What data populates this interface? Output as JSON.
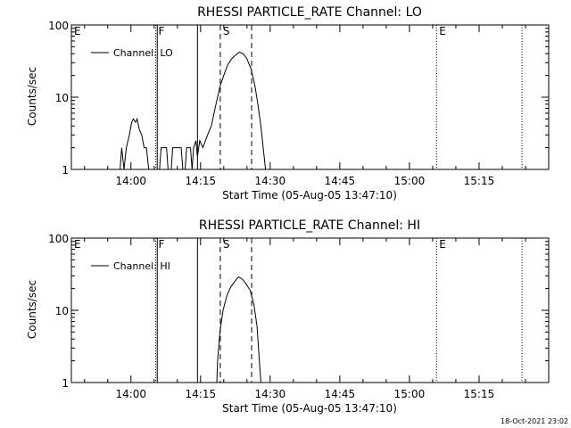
{
  "footer_stamp": "18-Oct-2021 23:02",
  "chart_data": [
    {
      "type": "line",
      "title": "RHESSI PARTICLE_RATE Channel: LO",
      "xlabel": "Start Time (05-Aug-05 13:47:10)",
      "ylabel": "Counts/sec",
      "yscale": "log",
      "ylim": [
        1,
        100
      ],
      "xlim": [
        "13:47:10",
        "15:30:00"
      ],
      "grid": false,
      "legend_position": "top-left",
      "x_ticks": [
        "14:00",
        "14:15",
        "14:30",
        "14:45",
        "15:00",
        "15:15"
      ],
      "y_ticks": [
        "1",
        "10",
        "100"
      ],
      "markers": [
        {
          "time": "13:47:10",
          "label": "E",
          "style": "none"
        },
        {
          "time": "14:05:20",
          "label": "F",
          "style": "dotted"
        },
        {
          "time": "14:05:40",
          "label": "",
          "style": "solid"
        },
        {
          "time": "14:14:20",
          "label": "",
          "style": "solid"
        },
        {
          "time": "14:19:15",
          "label": "S",
          "style": "dashed"
        },
        {
          "time": "14:26:00",
          "label": "",
          "style": "dashed"
        },
        {
          "time": "15:05:50",
          "label": "E",
          "style": "dotted"
        },
        {
          "time": "15:24:15",
          "label": "",
          "style": "dotted"
        }
      ],
      "series": [
        {
          "name": "Channel: LO",
          "points": [
            [
              "13:57:40",
              1
            ],
            [
              "13:58:00",
              2
            ],
            [
              "13:58:30",
              1
            ],
            [
              "13:59:00",
              2
            ],
            [
              "13:59:40",
              3
            ],
            [
              "14:00:10",
              4.5
            ],
            [
              "14:00:30",
              5
            ],
            [
              "14:01:00",
              4.5
            ],
            [
              "14:01:20",
              5
            ],
            [
              "14:01:50",
              3.5
            ],
            [
              "14:02:20",
              3
            ],
            [
              "14:02:50",
              2
            ],
            [
              "14:03:20",
              2
            ],
            [
              "14:03:50",
              1
            ],
            [
              "14:06:10",
              1
            ],
            [
              "14:06:30",
              2
            ],
            [
              "14:07:40",
              2
            ],
            [
              "14:08:00",
              1
            ],
            [
              "14:08:40",
              1
            ],
            [
              "14:09:00",
              2
            ],
            [
              "14:10:50",
              2
            ],
            [
              "14:11:10",
              1
            ],
            [
              "14:11:40",
              1
            ],
            [
              "14:12:00",
              2
            ],
            [
              "14:12:50",
              2
            ],
            [
              "14:13:10",
              1
            ],
            [
              "14:13:30",
              2
            ],
            [
              "14:14:00",
              2.5
            ],
            [
              "14:14:20",
              1.5
            ],
            [
              "14:14:50",
              2.5
            ],
            [
              "14:15:30",
              2
            ],
            [
              "14:16:30",
              3
            ],
            [
              "14:17:20",
              4
            ],
            [
              "14:18:20",
              8
            ],
            [
              "14:19:10",
              14
            ],
            [
              "14:20:00",
              20
            ],
            [
              "14:20:50",
              28
            ],
            [
              "14:21:40",
              34
            ],
            [
              "14:22:30",
              38
            ],
            [
              "14:23:20",
              42
            ],
            [
              "14:24:10",
              40
            ],
            [
              "14:25:00",
              34
            ],
            [
              "14:25:50",
              25
            ],
            [
              "14:26:40",
              15
            ],
            [
              "14:27:20",
              8
            ],
            [
              "14:28:00",
              4
            ],
            [
              "14:28:30",
              2
            ],
            [
              "14:29:00",
              1
            ]
          ]
        }
      ]
    },
    {
      "type": "line",
      "title": "RHESSI PARTICLE_RATE Channel: HI",
      "xlabel": "Start Time (05-Aug-05 13:47:10)",
      "ylabel": "Counts/sec",
      "yscale": "log",
      "ylim": [
        1,
        100
      ],
      "xlim": [
        "13:47:10",
        "15:30:00"
      ],
      "grid": false,
      "legend_position": "top-left",
      "x_ticks": [
        "14:00",
        "14:15",
        "14:30",
        "14:45",
        "15:00",
        "15:15"
      ],
      "y_ticks": [
        "1",
        "10",
        "100"
      ],
      "markers": [
        {
          "time": "13:47:10",
          "label": "E",
          "style": "none"
        },
        {
          "time": "14:05:20",
          "label": "F",
          "style": "dotted"
        },
        {
          "time": "14:05:40",
          "label": "",
          "style": "solid"
        },
        {
          "time": "14:14:20",
          "label": "",
          "style": "solid"
        },
        {
          "time": "14:19:15",
          "label": "S",
          "style": "dashed"
        },
        {
          "time": "14:26:00",
          "label": "",
          "style": "dashed"
        },
        {
          "time": "15:05:50",
          "label": "E",
          "style": "dotted"
        },
        {
          "time": "15:24:15",
          "label": "",
          "style": "dotted"
        }
      ],
      "series": [
        {
          "name": "Channel: HI",
          "points": [
            [
              "14:18:30",
              1
            ],
            [
              "14:18:40",
              2
            ],
            [
              "14:19:10",
              5
            ],
            [
              "14:19:50",
              10
            ],
            [
              "14:20:40",
              16
            ],
            [
              "14:21:30",
              21
            ],
            [
              "14:22:20",
              25
            ],
            [
              "14:23:10",
              29
            ],
            [
              "14:24:00",
              27
            ],
            [
              "14:24:50",
              23
            ],
            [
              "14:25:40",
              19
            ],
            [
              "14:26:30",
              12
            ],
            [
              "14:27:10",
              6
            ],
            [
              "14:27:40",
              2
            ],
            [
              "14:28:00",
              1
            ]
          ]
        }
      ]
    }
  ]
}
